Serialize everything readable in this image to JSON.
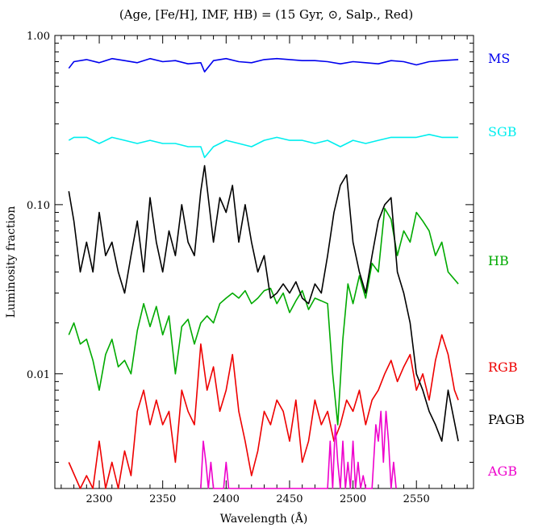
{
  "chart_data": {
    "type": "line",
    "title": "(Age, [Fe/H], IMF, HB) = (15 Gyr, ⊙, Salp., Red)",
    "xlabel": "Wavelength (Å)",
    "ylabel": "Luminosity fraction",
    "xscale": "linear",
    "yscale": "log",
    "xlim": [
      2265,
      2595
    ],
    "ylim": [
      0.0021,
      1.0
    ],
    "xticks": [
      2300,
      2350,
      2400,
      2450,
      2500,
      2550
    ],
    "xtick_labels": [
      "2300",
      "2350",
      "2400",
      "2450",
      "2500",
      "2550"
    ],
    "yticks": [
      1.0,
      0.1,
      0.01
    ],
    "ytick_labels": [
      "1.00",
      "0.10",
      "0.01"
    ],
    "grid": false,
    "legend": "labels-right",
    "series": [
      {
        "name": "MS",
        "color": "#0000ee",
        "x": [
          2276,
          2280,
          2290,
          2300,
          2310,
          2320,
          2330,
          2340,
          2350,
          2360,
          2370,
          2380,
          2383,
          2390,
          2400,
          2410,
          2420,
          2430,
          2440,
          2450,
          2460,
          2470,
          2480,
          2490,
          2500,
          2510,
          2520,
          2530,
          2540,
          2550,
          2560,
          2570,
          2583
        ],
        "y": [
          0.64,
          0.7,
          0.72,
          0.69,
          0.73,
          0.71,
          0.69,
          0.73,
          0.7,
          0.71,
          0.68,
          0.69,
          0.61,
          0.71,
          0.73,
          0.7,
          0.69,
          0.72,
          0.73,
          0.72,
          0.71,
          0.71,
          0.7,
          0.68,
          0.7,
          0.69,
          0.68,
          0.71,
          0.7,
          0.67,
          0.7,
          0.71,
          0.72
        ]
      },
      {
        "name": "SGB",
        "color": "#00eeee",
        "x": [
          2276,
          2280,
          2290,
          2300,
          2310,
          2320,
          2330,
          2340,
          2350,
          2360,
          2370,
          2380,
          2383,
          2390,
          2400,
          2410,
          2420,
          2430,
          2440,
          2450,
          2460,
          2470,
          2480,
          2490,
          2500,
          2510,
          2520,
          2530,
          2540,
          2550,
          2560,
          2570,
          2583
        ],
        "y": [
          0.24,
          0.25,
          0.25,
          0.23,
          0.25,
          0.24,
          0.23,
          0.24,
          0.23,
          0.23,
          0.22,
          0.22,
          0.19,
          0.22,
          0.24,
          0.23,
          0.22,
          0.24,
          0.25,
          0.24,
          0.24,
          0.23,
          0.24,
          0.22,
          0.24,
          0.23,
          0.24,
          0.25,
          0.25,
          0.25,
          0.26,
          0.25,
          0.25
        ]
      },
      {
        "name": "HB",
        "color": "#00aa00",
        "x": [
          2276,
          2280,
          2285,
          2290,
          2295,
          2300,
          2305,
          2310,
          2315,
          2320,
          2325,
          2330,
          2335,
          2340,
          2345,
          2350,
          2355,
          2360,
          2365,
          2370,
          2375,
          2380,
          2385,
          2390,
          2395,
          2400,
          2405,
          2410,
          2415,
          2420,
          2425,
          2430,
          2435,
          2440,
          2445,
          2450,
          2455,
          2460,
          2465,
          2470,
          2475,
          2480,
          2484,
          2488,
          2492,
          2496,
          2500,
          2505,
          2510,
          2515,
          2520,
          2525,
          2530,
          2535,
          2540,
          2545,
          2550,
          2555,
          2560,
          2565,
          2570,
          2575,
          2583
        ],
        "y": [
          0.017,
          0.02,
          0.015,
          0.016,
          0.012,
          0.008,
          0.013,
          0.016,
          0.011,
          0.012,
          0.01,
          0.018,
          0.026,
          0.019,
          0.025,
          0.017,
          0.022,
          0.01,
          0.019,
          0.021,
          0.015,
          0.02,
          0.022,
          0.02,
          0.026,
          0.028,
          0.03,
          0.028,
          0.031,
          0.026,
          0.028,
          0.031,
          0.032,
          0.026,
          0.03,
          0.023,
          0.027,
          0.031,
          0.024,
          0.028,
          0.027,
          0.026,
          0.01,
          0.005,
          0.016,
          0.034,
          0.026,
          0.038,
          0.028,
          0.045,
          0.04,
          0.095,
          0.082,
          0.05,
          0.07,
          0.06,
          0.09,
          0.08,
          0.07,
          0.05,
          0.06,
          0.04,
          0.034
        ]
      },
      {
        "name": "RGB",
        "color": "#ee0000",
        "x": [
          2276,
          2285,
          2290,
          2295,
          2300,
          2305,
          2310,
          2315,
          2320,
          2325,
          2330,
          2335,
          2340,
          2345,
          2350,
          2355,
          2360,
          2365,
          2370,
          2375,
          2380,
          2385,
          2390,
          2395,
          2400,
          2405,
          2410,
          2415,
          2420,
          2425,
          2430,
          2435,
          2440,
          2445,
          2450,
          2455,
          2460,
          2465,
          2470,
          2475,
          2480,
          2485,
          2490,
          2495,
          2500,
          2505,
          2510,
          2515,
          2520,
          2525,
          2530,
          2535,
          2540,
          2545,
          2550,
          2555,
          2560,
          2565,
          2570,
          2575,
          2580,
          2583
        ],
        "y": [
          0.003,
          0.0021,
          0.0025,
          0.0021,
          0.004,
          0.0021,
          0.003,
          0.0021,
          0.0035,
          0.0025,
          0.006,
          0.008,
          0.005,
          0.007,
          0.005,
          0.006,
          0.003,
          0.008,
          0.006,
          0.005,
          0.015,
          0.008,
          0.011,
          0.006,
          0.008,
          0.013,
          0.006,
          0.004,
          0.0025,
          0.0035,
          0.006,
          0.005,
          0.007,
          0.006,
          0.004,
          0.007,
          0.003,
          0.004,
          0.007,
          0.005,
          0.006,
          0.004,
          0.005,
          0.007,
          0.006,
          0.008,
          0.005,
          0.007,
          0.008,
          0.01,
          0.012,
          0.009,
          0.011,
          0.013,
          0.008,
          0.01,
          0.007,
          0.012,
          0.017,
          0.013,
          0.008,
          0.007
        ]
      },
      {
        "name": "PAGB",
        "color": "#000000",
        "x": [
          2276,
          2280,
          2285,
          2290,
          2295,
          2300,
          2305,
          2310,
          2315,
          2320,
          2325,
          2330,
          2335,
          2340,
          2345,
          2350,
          2355,
          2360,
          2365,
          2370,
          2375,
          2380,
          2383,
          2390,
          2395,
          2400,
          2405,
          2410,
          2415,
          2420,
          2425,
          2430,
          2435,
          2440,
          2445,
          2450,
          2455,
          2460,
          2465,
          2470,
          2475,
          2480,
          2485,
          2490,
          2495,
          2500,
          2505,
          2510,
          2515,
          2520,
          2525,
          2530,
          2535,
          2540,
          2545,
          2550,
          2555,
          2560,
          2565,
          2570,
          2575,
          2583
        ],
        "y": [
          0.12,
          0.08,
          0.04,
          0.06,
          0.04,
          0.09,
          0.05,
          0.06,
          0.04,
          0.03,
          0.05,
          0.08,
          0.04,
          0.11,
          0.06,
          0.04,
          0.07,
          0.05,
          0.1,
          0.06,
          0.05,
          0.12,
          0.17,
          0.06,
          0.11,
          0.09,
          0.13,
          0.06,
          0.1,
          0.06,
          0.04,
          0.05,
          0.028,
          0.03,
          0.034,
          0.03,
          0.035,
          0.028,
          0.026,
          0.034,
          0.03,
          0.05,
          0.09,
          0.13,
          0.15,
          0.06,
          0.04,
          0.03,
          0.05,
          0.08,
          0.1,
          0.11,
          0.04,
          0.03,
          0.02,
          0.01,
          0.008,
          0.006,
          0.005,
          0.004,
          0.008,
          0.004
        ]
      },
      {
        "name": "AGB",
        "color": "#ee00cc",
        "x": [
          2380,
          2382,
          2384,
          2386,
          2388,
          2390,
          2398,
          2400,
          2402,
          2480,
          2482,
          2484,
          2486,
          2488,
          2490,
          2492,
          2494,
          2496,
          2498,
          2500,
          2502,
          2504,
          2506,
          2508,
          2510,
          2515,
          2518,
          2520,
          2522,
          2524,
          2526,
          2528,
          2530,
          2532,
          2534
        ],
        "y": [
          0.0021,
          0.004,
          0.003,
          0.0021,
          0.003,
          0.0021,
          0.0021,
          0.003,
          0.0021,
          0.0021,
          0.004,
          0.0021,
          0.005,
          0.003,
          0.0021,
          0.004,
          0.0021,
          0.003,
          0.0021,
          0.004,
          0.0021,
          0.003,
          0.0021,
          0.0025,
          0.0021,
          0.0021,
          0.005,
          0.004,
          0.006,
          0.003,
          0.006,
          0.004,
          0.0021,
          0.003,
          0.0021
        ]
      }
    ]
  }
}
